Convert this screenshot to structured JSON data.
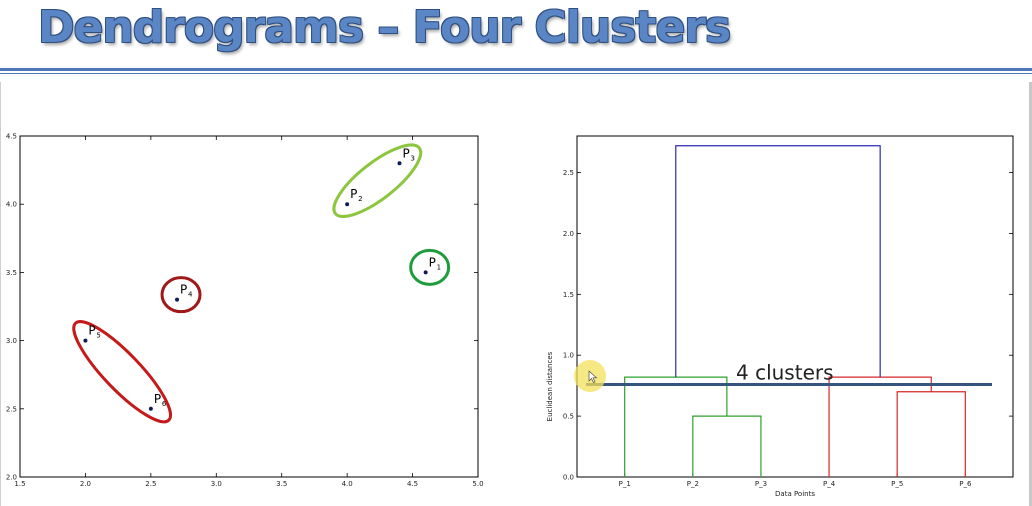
{
  "slide": {
    "title": "Dendrograms – Four Clusters"
  },
  "chart_data": [
    {
      "type": "scatter",
      "title": "",
      "xlabel": "",
      "ylabel": "",
      "xlim": [
        1.5,
        5.0
      ],
      "ylim": [
        2.0,
        4.5
      ],
      "x_ticks": [
        "1.5",
        "2.0",
        "2.5",
        "3.0",
        "3.5",
        "4.0",
        "4.5",
        "5.0"
      ],
      "y_ticks": [
        "2.0",
        "2.5",
        "3.0",
        "3.5",
        "4.0",
        "4.5"
      ],
      "grid": false,
      "points": [
        {
          "label": "P",
          "sub": "1",
          "x": 4.6,
          "y": 3.5
        },
        {
          "label": "P",
          "sub": "2",
          "x": 4.0,
          "y": 4.0
        },
        {
          "label": "P",
          "sub": "3",
          "x": 4.4,
          "y": 4.3
        },
        {
          "label": "P",
          "sub": "4",
          "x": 2.7,
          "y": 3.3
        },
        {
          "label": "P",
          "sub": "5",
          "x": 2.0,
          "y": 3.0
        },
        {
          "label": "P",
          "sub": "6",
          "x": 2.5,
          "y": 2.5
        }
      ],
      "clusters": [
        {
          "members": [
            "P2",
            "P3"
          ],
          "color": "#8cc63f"
        },
        {
          "members": [
            "P1"
          ],
          "color": "#1e9c3c"
        },
        {
          "members": [
            "P4"
          ],
          "color": "#a01818"
        },
        {
          "members": [
            "P5",
            "P6"
          ],
          "color": "#c41a1a"
        }
      ]
    },
    {
      "type": "dendrogram",
      "title": "",
      "xlabel": "Data Points",
      "ylabel": "Euclidean distances",
      "ylim": [
        0.0,
        2.8
      ],
      "y_ticks": [
        "0.0",
        "0.5",
        "1.0",
        "1.5",
        "2.0",
        "2.5"
      ],
      "leaves": [
        "P_1",
        "P_2",
        "P_3",
        "P_4",
        "P_5",
        "P_6"
      ],
      "merges": [
        {
          "left": "P_2",
          "right": "P_3",
          "height": 0.5,
          "color": "#2ca02c"
        },
        {
          "left": "P_1",
          "right": "P_2+P_3",
          "height": 0.82,
          "color": "#2ca02c"
        },
        {
          "left": "P_5",
          "right": "P_6",
          "height": 0.7,
          "color": "#d62728"
        },
        {
          "left": "P_4",
          "right": "P_5+P_6",
          "height": 0.82,
          "color": "#d62728"
        },
        {
          "left": "P_1+P_2+P_3",
          "right": "P_4+P_5+P_6",
          "height": 2.72,
          "color": "#2b2bb5"
        }
      ],
      "threshold": {
        "height": 0.76,
        "label": "4 clusters",
        "color": "#35557f"
      }
    }
  ]
}
